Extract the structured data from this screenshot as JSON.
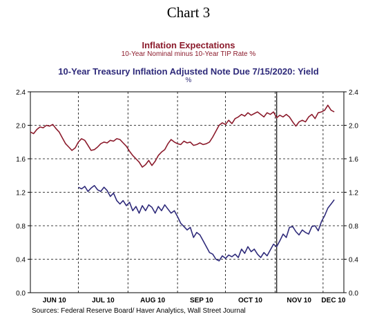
{
  "page_title": "Chart 3",
  "source": "Sources:  Federal Reserve Board/ Haver Analytics, Wall Street Journal",
  "colors": {
    "series1": "#8b1a2b",
    "series2": "#2e2a7a",
    "grid": "#000000"
  },
  "chart_data": {
    "type": "line",
    "ylim": [
      0,
      2.4
    ],
    "y_ticks": [
      "0.0",
      "0.4",
      "0.8",
      "1.2",
      "1.6",
      "2.0",
      "2.4"
    ],
    "y_tick_values": [
      0,
      0.4,
      0.8,
      1.2,
      1.6,
      2.0,
      2.4
    ],
    "x_range_days": [
      0,
      196
    ],
    "month_labels": [
      "JUN 10",
      "JUL 10",
      "AUG 10",
      "SEP 10",
      "OCT 10",
      "NOV 10",
      "DEC 10"
    ],
    "month_boundaries_days": [
      0,
      30,
      61,
      92,
      122,
      153,
      183
    ],
    "grid": "dashed",
    "event_line_day": 154,
    "series": [
      {
        "name": "Inflation Expectations",
        "subtitle": "10-Year Nominal minus 10-Year TIP Rate    %",
        "color_key": "series1",
        "x": [
          0,
          2,
          4,
          6,
          8,
          10,
          12,
          14,
          16,
          18,
          20,
          22,
          24,
          26,
          28,
          30,
          32,
          34,
          36,
          38,
          40,
          42,
          44,
          46,
          48,
          50,
          52,
          54,
          56,
          58,
          60,
          62,
          64,
          66,
          68,
          70,
          72,
          74,
          76,
          78,
          80,
          82,
          84,
          86,
          88,
          90,
          92,
          94,
          96,
          98,
          100,
          102,
          104,
          106,
          108,
          110,
          112,
          114,
          116,
          118,
          120,
          122,
          124,
          126,
          128,
          130,
          132,
          134,
          136,
          138,
          140,
          142,
          144,
          146,
          148,
          150,
          152,
          154,
          156,
          158,
          160,
          162,
          164,
          166,
          168,
          170,
          172,
          174,
          176,
          178,
          180,
          182,
          184,
          186,
          188,
          190
        ],
        "values": [
          1.92,
          1.9,
          1.95,
          1.98,
          1.97,
          2.0,
          1.99,
          2.01,
          1.96,
          1.92,
          1.85,
          1.78,
          1.74,
          1.7,
          1.73,
          1.8,
          1.84,
          1.82,
          1.76,
          1.7,
          1.71,
          1.74,
          1.78,
          1.8,
          1.79,
          1.82,
          1.81,
          1.84,
          1.83,
          1.79,
          1.75,
          1.69,
          1.64,
          1.6,
          1.56,
          1.5,
          1.53,
          1.58,
          1.52,
          1.57,
          1.64,
          1.68,
          1.71,
          1.78,
          1.83,
          1.8,
          1.78,
          1.77,
          1.81,
          1.79,
          1.8,
          1.76,
          1.77,
          1.79,
          1.77,
          1.78,
          1.8,
          1.86,
          1.93,
          2.0,
          2.03,
          2.01,
          2.06,
          2.02,
          2.08,
          2.1,
          2.13,
          2.11,
          2.15,
          2.12,
          2.14,
          2.16,
          2.13,
          2.1,
          2.15,
          2.13,
          2.16,
          2.09,
          2.12,
          2.1,
          2.13,
          2.1,
          2.04,
          1.99,
          2.04,
          2.06,
          2.04,
          2.1,
          2.13,
          2.08,
          2.15,
          2.16,
          2.18,
          2.24,
          2.18,
          2.16
        ]
      },
      {
        "name": "10-Year Treasury Inflation Adjusted Note Due 7/15/2020: Yield",
        "subtitle": "%",
        "color_key": "series2",
        "x": [
          30,
          32,
          34,
          36,
          38,
          40,
          42,
          44,
          46,
          48,
          50,
          52,
          54,
          56,
          58,
          60,
          62,
          64,
          66,
          68,
          70,
          72,
          74,
          76,
          78,
          80,
          82,
          84,
          86,
          88,
          90,
          92,
          94,
          96,
          98,
          100,
          102,
          104,
          106,
          108,
          110,
          112,
          114,
          116,
          118,
          120,
          122,
          124,
          126,
          128,
          130,
          132,
          134,
          136,
          138,
          140,
          142,
          144,
          146,
          148,
          150,
          152,
          154,
          156,
          158,
          160,
          162,
          164,
          166,
          168,
          170,
          172,
          174,
          176,
          178,
          180,
          182,
          184,
          186,
          188,
          190
        ],
        "values": [
          1.26,
          1.24,
          1.27,
          1.21,
          1.25,
          1.28,
          1.23,
          1.21,
          1.26,
          1.22,
          1.15,
          1.19,
          1.1,
          1.06,
          1.1,
          1.04,
          1.08,
          0.98,
          1.03,
          0.95,
          1.04,
          0.98,
          1.05,
          1.02,
          0.95,
          1.03,
          0.98,
          1.05,
          1.0,
          0.95,
          0.98,
          0.91,
          0.83,
          0.79,
          0.75,
          0.78,
          0.66,
          0.72,
          0.69,
          0.62,
          0.55,
          0.48,
          0.46,
          0.4,
          0.38,
          0.44,
          0.41,
          0.45,
          0.43,
          0.46,
          0.42,
          0.52,
          0.47,
          0.55,
          0.49,
          0.52,
          0.46,
          0.42,
          0.48,
          0.44,
          0.51,
          0.58,
          0.55,
          0.62,
          0.7,
          0.66,
          0.78,
          0.79,
          0.73,
          0.69,
          0.75,
          0.72,
          0.7,
          0.79,
          0.8,
          0.74,
          0.85,
          0.92,
          1.01,
          1.06,
          1.11
        ]
      }
    ]
  }
}
